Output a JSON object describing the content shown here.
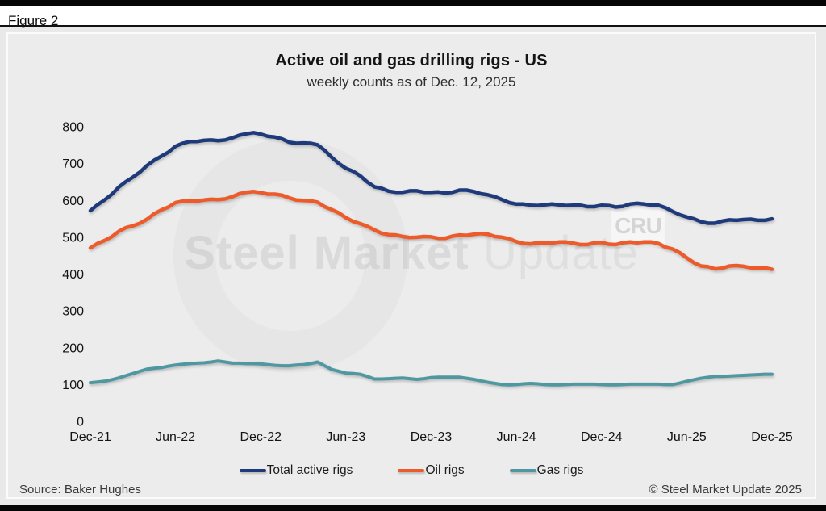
{
  "figure_label": "Figure 2",
  "title": "Active oil and gas drilling rigs - US",
  "subtitle": "weekly counts as of Dec. 12, 2025",
  "watermark": {
    "bold": "Steel Market",
    "light": "Update",
    "corner": "CRU"
  },
  "footer": {
    "source": "Source: Baker Hughes",
    "copyright": "© Steel Market Update 2025"
  },
  "colors": {
    "total": "#1f3a7a",
    "oil": "#ee5b2b",
    "gas": "#4f98a2"
  },
  "chart_data": {
    "type": "line",
    "title": "Active oil and gas drilling rigs - US",
    "subtitle": "weekly counts as of Dec. 12, 2025",
    "xlabel": "",
    "ylabel": "",
    "ylim": [
      0,
      800
    ],
    "y_ticks": [
      0,
      100,
      200,
      300,
      400,
      500,
      600,
      700,
      800
    ],
    "x_tick_labels": [
      "Dec-21",
      "Jun-22",
      "Dec-22",
      "Jun-23",
      "Dec-23",
      "Jun-24",
      "Dec-24",
      "Jun-25",
      "Dec-25"
    ],
    "x_tick_positions": [
      0,
      12,
      24,
      36,
      48,
      60,
      72,
      84,
      96
    ],
    "grid": false,
    "legend_position": "bottom",
    "series": [
      {
        "name": "Total active rigs",
        "color_key": "total",
        "values": [
          572,
          588,
          601,
          616,
          636,
          651,
          663,
          677,
          695,
          709,
          720,
          731,
          747,
          755,
          760,
          760,
          763,
          764,
          762,
          764,
          770,
          777,
          781,
          784,
          780,
          774,
          772,
          767,
          758,
          755,
          756,
          755,
          751,
          736,
          717,
          700,
          687,
          679,
          667,
          650,
          637,
          633,
          625,
          622,
          622,
          626,
          626,
          622,
          622,
          623,
          620,
          622,
          628,
          628,
          624,
          618,
          615,
          610,
          602,
          594,
          590,
          590,
          587,
          586,
          588,
          590,
          588,
          586,
          587,
          587,
          583,
          583,
          587,
          586,
          582,
          584,
          590,
          592,
          590,
          587,
          587,
          580,
          570,
          561,
          555,
          550,
          542,
          538,
          538,
          544,
          547,
          546,
          548,
          549,
          546,
          546,
          550
        ]
      },
      {
        "name": "Oil rigs",
        "color_key": "oil",
        "values": [
          471,
          483,
          491,
          501,
          516,
          526,
          531,
          538,
          549,
          564,
          574,
          582,
          594,
          598,
          599,
          598,
          601,
          603,
          602,
          604,
          610,
          618,
          622,
          624,
          621,
          617,
          617,
          614,
          607,
          601,
          600,
          599,
          595,
          583,
          575,
          566,
          553,
          543,
          537,
          530,
          520,
          511,
          507,
          506,
          502,
          499,
          500,
          502,
          501,
          497,
          497,
          503,
          506,
          505,
          508,
          510,
          508,
          502,
          500,
          496,
          488,
          483,
          482,
          485,
          485,
          484,
          487,
          487,
          484,
          480,
          480,
          485,
          486,
          481,
          480,
          485,
          487,
          485,
          487,
          487,
          483,
          473,
          468,
          458,
          444,
          431,
          422,
          420,
          414,
          416,
          422,
          423,
          421,
          417,
          417,
          417,
          413
        ]
      },
      {
        "name": "Gas rigs",
        "color_key": "gas",
        "values": [
          105,
          107,
          109,
          113,
          118,
          124,
          130,
          136,
          142,
          144,
          146,
          150,
          153,
          155,
          157,
          158,
          159,
          161,
          164,
          161,
          158,
          158,
          157,
          157,
          156,
          154,
          152,
          151,
          151,
          153,
          154,
          157,
          161,
          151,
          141,
          136,
          131,
          130,
          128,
          122,
          115,
          115,
          116,
          117,
          118,
          116,
          114,
          116,
          119,
          120,
          120,
          120,
          120,
          117,
          114,
          110,
          106,
          103,
          100,
          99,
          100,
          102,
          103,
          102,
          100,
          99,
          99,
          100,
          101,
          101,
          101,
          101,
          100,
          99,
          99,
          100,
          101,
          101,
          101,
          101,
          101,
          100,
          100,
          104,
          109,
          113,
          117,
          120,
          122,
          122,
          123,
          124,
          125,
          126,
          127,
          128,
          128
        ]
      }
    ]
  }
}
